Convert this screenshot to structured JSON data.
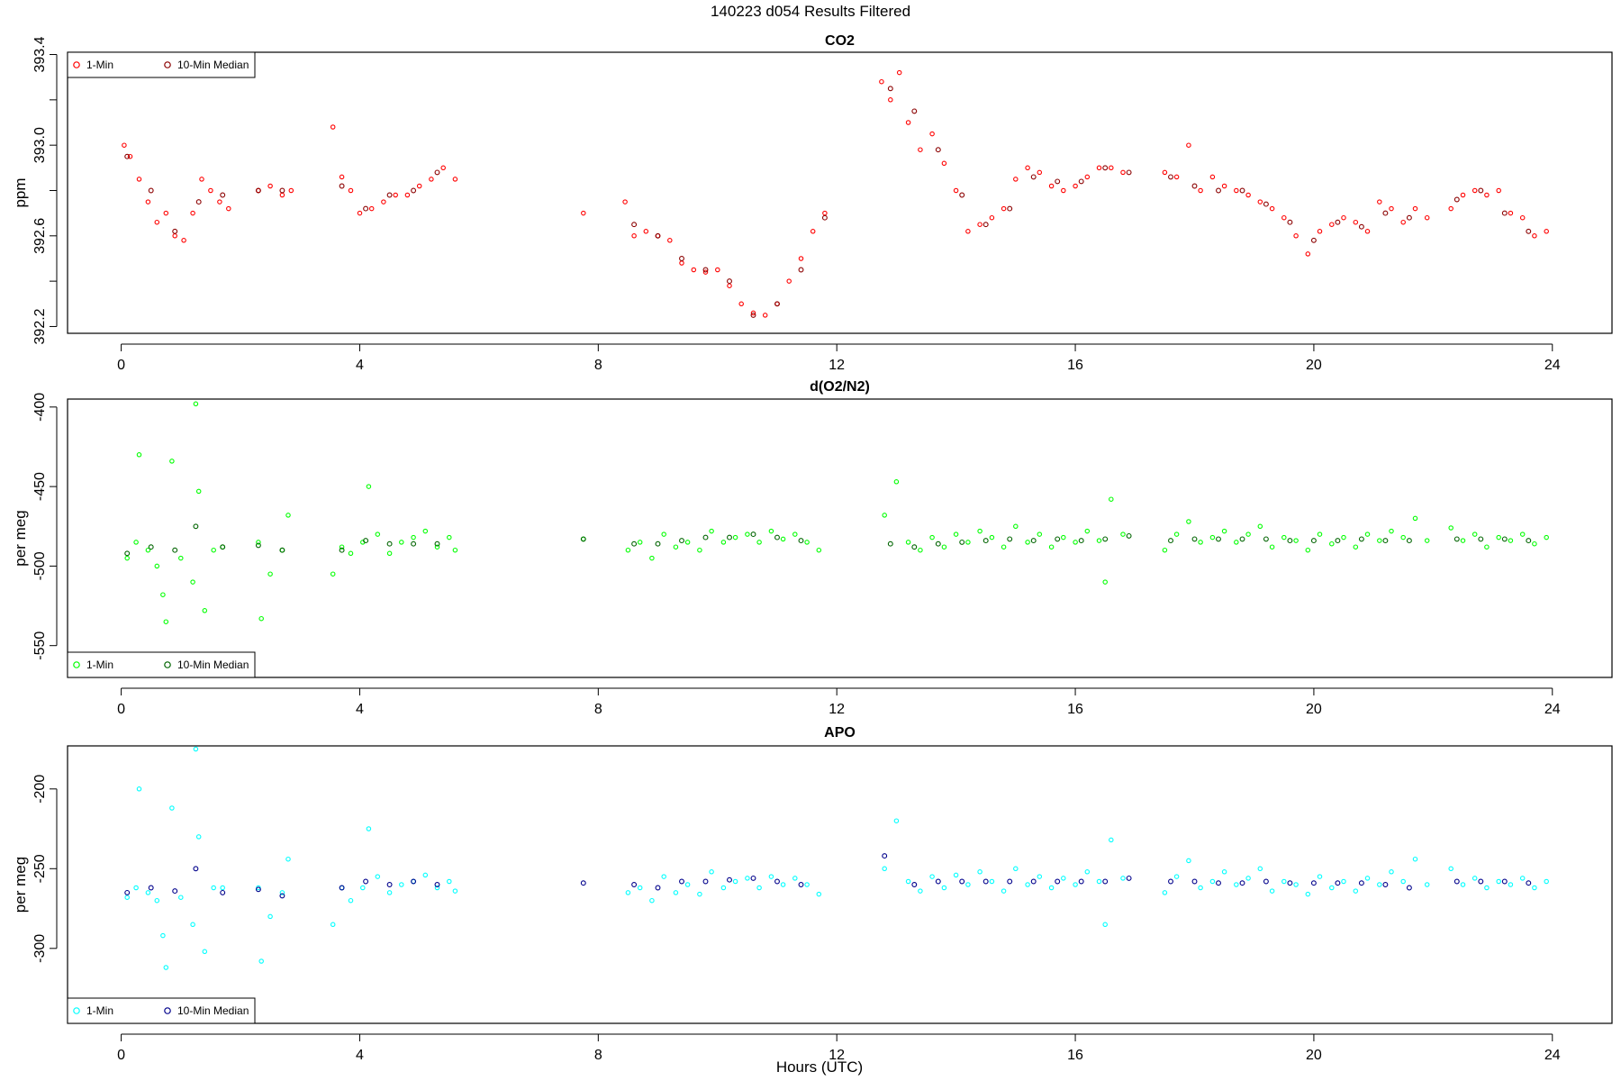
{
  "figure_title": "140223   d054   Results Filtered",
  "xlabel": "Hours (UTC)",
  "colors": {
    "co2_1min": "#ff0000",
    "co2_median": "#8b0000",
    "o2_1min": "#00ff00",
    "o2_median": "#006400",
    "apo_1min": "#00ffff",
    "apo_median": "#00008b"
  },
  "chart_data": [
    {
      "type": "scatter",
      "title": "CO2",
      "xlabel": "",
      "ylabel": "ppm",
      "xlim": [
        -0.9,
        25.0
      ],
      "ylim": [
        392.17,
        393.41
      ],
      "xticks": [
        0,
        4,
        8,
        12,
        16,
        20,
        24
      ],
      "yticks": [
        392.2,
        392.6,
        393.0,
        393.4
      ],
      "ytick_labels": [
        "392.2",
        "392.6",
        "393.0",
        "393.4"
      ],
      "legend": {
        "position": "top-left",
        "entries": [
          "1-Min",
          "10-Min Median"
        ]
      },
      "grid": false,
      "series": [
        {
          "name": "1-Min",
          "x": [
            0.05,
            0.15,
            0.3,
            0.45,
            0.6,
            0.75,
            0.9,
            1.05,
            1.2,
            1.35,
            1.5,
            1.65,
            1.8,
            2.3,
            2.5,
            2.7,
            2.85,
            3.55,
            3.7,
            3.85,
            4.0,
            4.2,
            4.4,
            4.6,
            4.8,
            5.0,
            5.2,
            5.4,
            5.6,
            7.75,
            8.45,
            8.6,
            8.8,
            9.0,
            9.2,
            9.4,
            9.6,
            9.8,
            10.0,
            10.2,
            10.4,
            10.6,
            10.8,
            11.0,
            11.2,
            11.4,
            11.6,
            11.8,
            12.75,
            12.9,
            13.05,
            13.2,
            13.4,
            13.6,
            13.8,
            14.0,
            14.2,
            14.4,
            14.6,
            14.8,
            15.0,
            15.2,
            15.4,
            15.6,
            15.8,
            16.0,
            16.2,
            16.4,
            16.6,
            16.8,
            17.5,
            17.7,
            17.9,
            18.1,
            18.3,
            18.5,
            18.7,
            18.9,
            19.1,
            19.3,
            19.5,
            19.7,
            19.9,
            20.1,
            20.3,
            20.5,
            20.7,
            20.9,
            21.1,
            21.3,
            21.5,
            21.7,
            21.9,
            22.3,
            22.5,
            22.7,
            22.9,
            23.1,
            23.3,
            23.5,
            23.7,
            23.9
          ],
          "y": [
            393.0,
            392.95,
            392.85,
            392.75,
            392.66,
            392.7,
            392.6,
            392.58,
            392.7,
            392.85,
            392.8,
            392.75,
            392.72,
            392.8,
            392.82,
            392.78,
            392.8,
            393.08,
            392.86,
            392.8,
            392.7,
            392.72,
            392.75,
            392.78,
            392.78,
            392.82,
            392.85,
            392.9,
            392.85,
            392.7,
            392.75,
            392.6,
            392.62,
            392.6,
            392.58,
            392.48,
            392.45,
            392.44,
            392.45,
            392.38,
            392.3,
            392.26,
            392.25,
            392.3,
            392.4,
            392.5,
            392.62,
            392.7,
            393.28,
            393.2,
            393.32,
            393.1,
            392.98,
            393.05,
            392.92,
            392.8,
            392.62,
            392.65,
            392.68,
            392.72,
            392.85,
            392.9,
            392.88,
            392.82,
            392.8,
            392.82,
            392.86,
            392.9,
            392.9,
            392.88,
            392.88,
            392.86,
            393.0,
            392.8,
            392.86,
            392.82,
            392.8,
            392.78,
            392.75,
            392.72,
            392.68,
            392.6,
            392.52,
            392.62,
            392.65,
            392.68,
            392.66,
            392.62,
            392.75,
            392.72,
            392.66,
            392.72,
            392.68,
            392.72,
            392.78,
            392.8,
            392.78,
            392.8,
            392.7,
            392.68,
            392.6,
            392.62
          ]
        },
        {
          "name": "10-Min Median",
          "x": [
            0.1,
            0.5,
            0.9,
            1.3,
            1.7,
            2.3,
            2.7,
            3.7,
            4.1,
            4.5,
            4.9,
            5.3,
            8.6,
            9.0,
            9.4,
            9.8,
            10.2,
            10.6,
            11.0,
            11.4,
            11.8,
            12.9,
            13.3,
            13.7,
            14.1,
            14.5,
            14.9,
            15.3,
            15.7,
            16.1,
            16.5,
            16.9,
            17.6,
            18.0,
            18.4,
            18.8,
            19.2,
            19.6,
            20.0,
            20.4,
            20.8,
            21.2,
            21.6,
            22.4,
            22.8,
            23.2,
            23.6
          ],
          "y": [
            392.95,
            392.8,
            392.62,
            392.75,
            392.78,
            392.8,
            392.8,
            392.82,
            392.72,
            392.78,
            392.8,
            392.88,
            392.65,
            392.6,
            392.5,
            392.45,
            392.4,
            392.25,
            392.3,
            392.45,
            392.68,
            393.25,
            393.15,
            392.98,
            392.78,
            392.65,
            392.72,
            392.86,
            392.84,
            392.84,
            392.9,
            392.88,
            392.86,
            392.82,
            392.8,
            392.8,
            392.74,
            392.66,
            392.58,
            392.66,
            392.64,
            392.7,
            392.68,
            392.76,
            392.8,
            392.7,
            392.62
          ]
        }
      ]
    },
    {
      "type": "scatter",
      "title": "d(O2/N2)",
      "xlabel": "",
      "ylabel": "per meg",
      "xlim": [
        -0.9,
        25.0
      ],
      "ylim": [
        -570,
        -395
      ],
      "xticks": [
        0,
        4,
        8,
        12,
        16,
        20,
        24
      ],
      "yticks": [
        -400,
        -450,
        -500,
        -550
      ],
      "ytick_labels": [
        "-400",
        "-450",
        "-500",
        "-550"
      ],
      "legend": {
        "position": "bottom-left",
        "entries": [
          "1-Min",
          "10-Min Median"
        ]
      },
      "grid": false,
      "series": [
        {
          "name": "1-Min",
          "x": [
            0.1,
            0.25,
            0.3,
            0.45,
            0.6,
            0.7,
            0.75,
            0.85,
            1.0,
            1.2,
            1.25,
            1.3,
            1.4,
            1.55,
            1.7,
            2.3,
            2.35,
            2.5,
            2.7,
            2.8,
            3.55,
            3.7,
            3.85,
            4.05,
            4.15,
            4.3,
            4.5,
            4.7,
            4.9,
            5.1,
            5.3,
            5.5,
            5.6,
            7.75,
            8.5,
            8.7,
            8.9,
            9.1,
            9.3,
            9.5,
            9.7,
            9.9,
            10.1,
            10.3,
            10.5,
            10.7,
            10.9,
            11.1,
            11.3,
            11.5,
            11.7,
            12.8,
            13.0,
            13.2,
            13.4,
            13.6,
            13.8,
            14.0,
            14.2,
            14.4,
            14.6,
            14.8,
            15.0,
            15.2,
            15.4,
            15.6,
            15.8,
            16.0,
            16.2,
            16.4,
            16.5,
            16.6,
            16.8,
            17.5,
            17.7,
            17.9,
            18.1,
            18.3,
            18.5,
            18.7,
            18.9,
            19.1,
            19.3,
            19.5,
            19.7,
            19.9,
            20.1,
            20.3,
            20.5,
            20.7,
            20.9,
            21.1,
            21.3,
            21.5,
            21.7,
            21.9,
            22.3,
            22.5,
            22.7,
            22.9,
            23.1,
            23.3,
            23.5,
            23.7,
            23.9
          ],
          "y": [
            -495,
            -485,
            -430,
            -490,
            -500,
            -518,
            -535,
            -434,
            -495,
            -510,
            -398,
            -453,
            -528,
            -490,
            -488,
            -485,
            -533,
            -505,
            -490,
            -468,
            -505,
            -488,
            -492,
            -485,
            -450,
            -480,
            -492,
            -485,
            -482,
            -478,
            -488,
            -482,
            -490,
            -483,
            -490,
            -485,
            -495,
            -480,
            -488,
            -485,
            -490,
            -478,
            -485,
            -482,
            -480,
            -485,
            -478,
            -483,
            -480,
            -485,
            -490,
            -468,
            -447,
            -485,
            -490,
            -482,
            -488,
            -480,
            -485,
            -478,
            -482,
            -488,
            -475,
            -485,
            -480,
            -488,
            -482,
            -485,
            -478,
            -484,
            -510,
            -458,
            -480,
            -490,
            -480,
            -472,
            -485,
            -482,
            -478,
            -485,
            -480,
            -475,
            -488,
            -482,
            -484,
            -490,
            -480,
            -486,
            -482,
            -488,
            -480,
            -484,
            -478,
            -482,
            -470,
            -484,
            -476,
            -484,
            -480,
            -488,
            -482,
            -484,
            -480,
            -486,
            -482
          ]
        },
        {
          "name": "10-Min Median",
          "x": [
            0.1,
            0.5,
            0.9,
            1.25,
            1.7,
            2.3,
            2.7,
            3.7,
            4.1,
            4.5,
            4.9,
            5.3,
            7.75,
            8.6,
            9.0,
            9.4,
            9.8,
            10.2,
            10.6,
            11.0,
            11.4,
            12.9,
            13.3,
            13.7,
            14.1,
            14.5,
            14.9,
            15.3,
            15.7,
            16.1,
            16.5,
            16.9,
            17.6,
            18.0,
            18.4,
            18.8,
            19.2,
            19.6,
            20.0,
            20.4,
            20.8,
            21.2,
            21.6,
            22.4,
            22.8,
            23.2,
            23.6
          ],
          "y": [
            -492,
            -488,
            -490,
            -475,
            -488,
            -487,
            -490,
            -490,
            -484,
            -486,
            -486,
            -486,
            -483,
            -486,
            -486,
            -484,
            -482,
            -482,
            -480,
            -482,
            -484,
            -486,
            -488,
            -486,
            -485,
            -484,
            -483,
            -484,
            -483,
            -484,
            -483,
            -481,
            -484,
            -483,
            -483,
            -483,
            -483,
            -484,
            -484,
            -484,
            -483,
            -484,
            -484,
            -483,
            -483,
            -483,
            -484
          ]
        }
      ]
    },
    {
      "type": "scatter",
      "title": "APO",
      "xlabel": "Hours (UTC)",
      "ylabel": "per meg",
      "xlim": [
        -0.9,
        25.0
      ],
      "ylim": [
        -347,
        -173
      ],
      "xticks": [
        0,
        4,
        8,
        12,
        16,
        20,
        24
      ],
      "yticks": [
        -200,
        -250,
        -300
      ],
      "ytick_labels": [
        "-200",
        "-250",
        "-300"
      ],
      "legend": {
        "position": "bottom-left",
        "entries": [
          "1-Min",
          "10-Min Median"
        ]
      },
      "grid": false,
      "series": [
        {
          "name": "1-Min",
          "x": [
            0.1,
            0.25,
            0.3,
            0.45,
            0.6,
            0.7,
            0.75,
            0.85,
            1.0,
            1.2,
            1.25,
            1.3,
            1.4,
            1.55,
            1.7,
            2.3,
            2.35,
            2.5,
            2.7,
            2.8,
            3.55,
            3.7,
            3.85,
            4.05,
            4.15,
            4.3,
            4.5,
            4.7,
            4.9,
            5.1,
            5.3,
            5.5,
            5.6,
            8.5,
            8.7,
            8.9,
            9.1,
            9.3,
            9.5,
            9.7,
            9.9,
            10.1,
            10.3,
            10.5,
            10.7,
            10.9,
            11.1,
            11.3,
            11.5,
            11.7,
            12.8,
            13.0,
            13.2,
            13.4,
            13.6,
            13.8,
            14.0,
            14.2,
            14.4,
            14.6,
            14.8,
            15.0,
            15.2,
            15.4,
            15.6,
            15.8,
            16.0,
            16.2,
            16.4,
            16.5,
            16.6,
            16.8,
            17.5,
            17.7,
            17.9,
            18.1,
            18.3,
            18.5,
            18.7,
            18.9,
            19.1,
            19.3,
            19.5,
            19.7,
            19.9,
            20.1,
            20.3,
            20.5,
            20.7,
            20.9,
            21.1,
            21.3,
            21.5,
            21.7,
            21.9,
            22.3,
            22.5,
            22.7,
            22.9,
            23.1,
            23.3,
            23.5,
            23.7,
            23.9
          ],
          "y": [
            -268,
            -262,
            -200,
            -265,
            -270,
            -292,
            -312,
            -212,
            -268,
            -285,
            -175,
            -230,
            -302,
            -262,
            -262,
            -262,
            -308,
            -280,
            -265,
            -244,
            -285,
            -262,
            -270,
            -262,
            -225,
            -255,
            -265,
            -260,
            -258,
            -254,
            -262,
            -258,
            -264,
            -265,
            -262,
            -270,
            -255,
            -265,
            -260,
            -266,
            -252,
            -262,
            -258,
            -256,
            -262,
            -255,
            -260,
            -256,
            -260,
            -266,
            -250,
            -220,
            -258,
            -264,
            -255,
            -262,
            -254,
            -260,
            -252,
            -258,
            -264,
            -250,
            -260,
            -255,
            -262,
            -256,
            -260,
            -252,
            -258,
            -285,
            -232,
            -256,
            -265,
            -255,
            -245,
            -262,
            -258,
            -252,
            -260,
            -256,
            -250,
            -264,
            -258,
            -260,
            -266,
            -255,
            -262,
            -258,
            -264,
            -256,
            -260,
            -252,
            -258,
            -244,
            -260,
            -250,
            -260,
            -256,
            -262,
            -258,
            -260,
            -256,
            -262,
            -258
          ]
        },
        {
          "name": "10-Min Median",
          "x": [
            0.1,
            0.5,
            0.9,
            1.25,
            1.7,
            2.3,
            2.7,
            3.7,
            4.1,
            4.5,
            4.9,
            5.3,
            7.75,
            8.6,
            9.0,
            9.4,
            9.8,
            10.2,
            10.6,
            11.0,
            11.4,
            12.8,
            13.3,
            13.7,
            14.1,
            14.5,
            14.9,
            15.3,
            15.7,
            16.1,
            16.5,
            16.9,
            17.6,
            18.0,
            18.4,
            18.8,
            19.2,
            19.6,
            20.0,
            20.4,
            20.8,
            21.2,
            21.6,
            22.4,
            22.8,
            23.2,
            23.6
          ],
          "y": [
            -265,
            -262,
            -264,
            -250,
            -265,
            -263,
            -267,
            -262,
            -258,
            -260,
            -258,
            -260,
            -259,
            -260,
            -262,
            -258,
            -258,
            -257,
            -256,
            -258,
            -260,
            -242,
            -260,
            -258,
            -258,
            -258,
            -258,
            -258,
            -258,
            -258,
            -258,
            -256,
            -258,
            -258,
            -259,
            -259,
            -258,
            -259,
            -259,
            -259,
            -259,
            -260,
            -262,
            -258,
            -258,
            -258,
            -259
          ]
        }
      ]
    }
  ]
}
